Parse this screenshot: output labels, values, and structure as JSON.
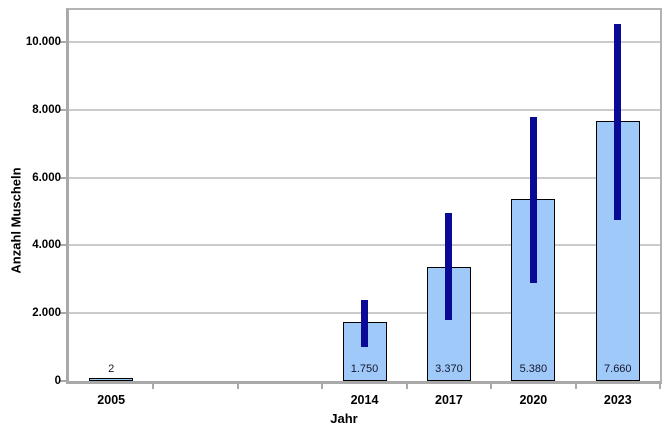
{
  "chart_data": {
    "type": "bar",
    "title": "",
    "xlabel": "Jahr",
    "ylabel": "Anzahl Muscheln",
    "categories": [
      "2005",
      "",
      "",
      "2014",
      "2017",
      "2020",
      "2023"
    ],
    "series": [
      {
        "name": "Anzahl Muscheln",
        "values": [
          2,
          null,
          null,
          1750,
          3370,
          5380,
          7660
        ],
        "value_labels": [
          "2",
          "",
          "",
          "1.750",
          "3.370",
          "5.380",
          "7.660"
        ],
        "error_low": [
          null,
          null,
          null,
          1000,
          1800,
          2900,
          4750
        ],
        "error_high": [
          null,
          null,
          null,
          2400,
          4950,
          7800,
          10550
        ]
      }
    ],
    "ylim": [
      0,
      10950
    ],
    "yticks": [
      0,
      2000,
      4000,
      6000,
      8000,
      10000
    ],
    "ytick_labels": [
      "0",
      "2.000",
      "4.000",
      "6.000",
      "8.000",
      "10.000"
    ],
    "grid": "horizontal",
    "legend_position": "none",
    "colors": {
      "bar_fill": "#9FC9F8",
      "bar_border": "#000000",
      "error_bar": "#0A0A96",
      "gridline": "#CBCBCB",
      "axis": "#A9A9A9",
      "tick_text": "#000000",
      "value_label_text": "#16162E",
      "background": "#FFFFFF"
    }
  }
}
